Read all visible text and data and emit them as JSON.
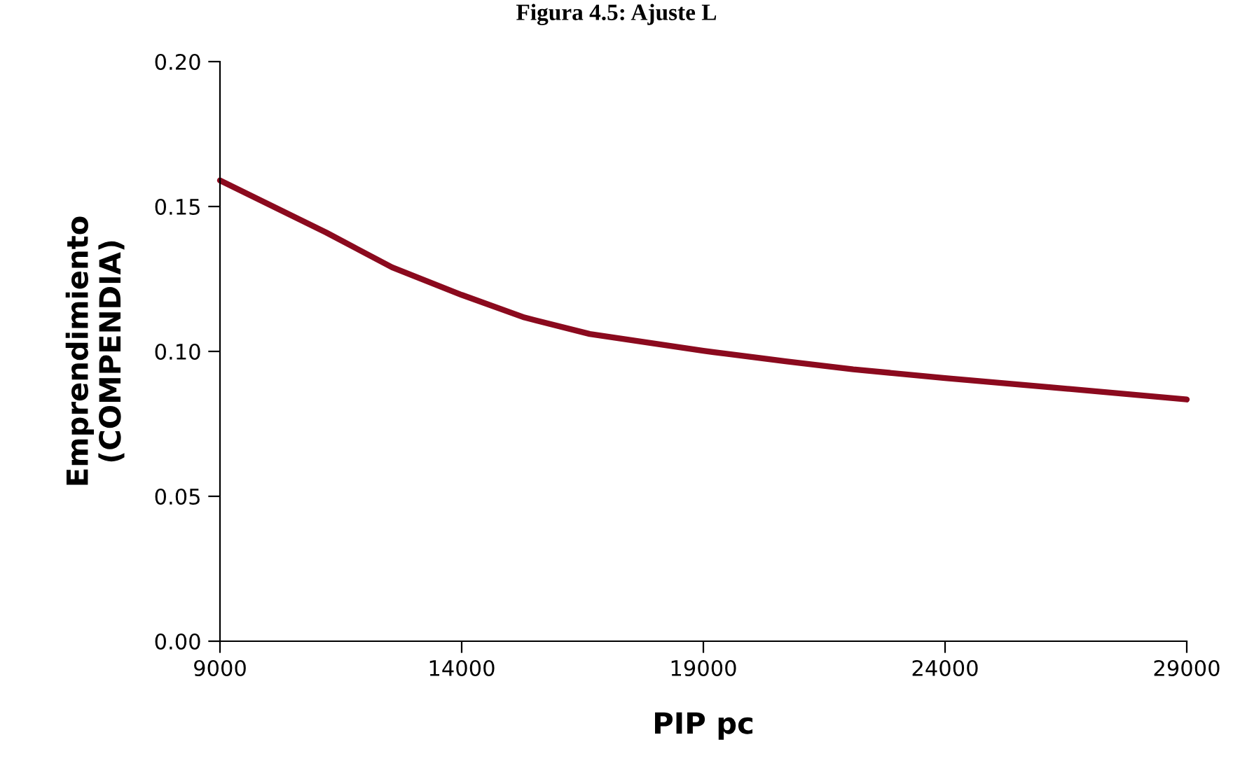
{
  "chart_data": {
    "type": "line",
    "title": "Figura 4.5: Ajuste L",
    "xlabel": "PIP pc",
    "ylabel": "Emprendimiento\n(COMPENDIA)",
    "series": [
      {
        "color": "#8b0a1e",
        "x": [
          9000,
          11200,
          12560,
          14000,
          15300,
          16650,
          19000,
          20700,
          22100,
          24000,
          26200,
          29000
        ],
        "values": [
          0.159,
          0.141,
          0.129,
          0.1195,
          0.1117,
          0.106,
          0.1002,
          0.0966,
          0.0938,
          0.0908,
          0.0876,
          0.0834
        ]
      }
    ],
    "xlim": [
      9000,
      29000
    ],
    "xticks": [
      9000,
      14000,
      19000,
      24000,
      29000
    ],
    "ylim": [
      0,
      0.2
    ],
    "yticks": [
      {
        "value": 0,
        "label": "0.00"
      },
      {
        "value": 0.05,
        "label": "0.05"
      },
      {
        "value": 0.1,
        "label": "0.10"
      },
      {
        "value": 0.15,
        "label": "0.15"
      },
      {
        "value": 0.2,
        "label": "0.20"
      }
    ],
    "grid": false,
    "legend": false,
    "marker": "none",
    "line_style": "solid"
  }
}
